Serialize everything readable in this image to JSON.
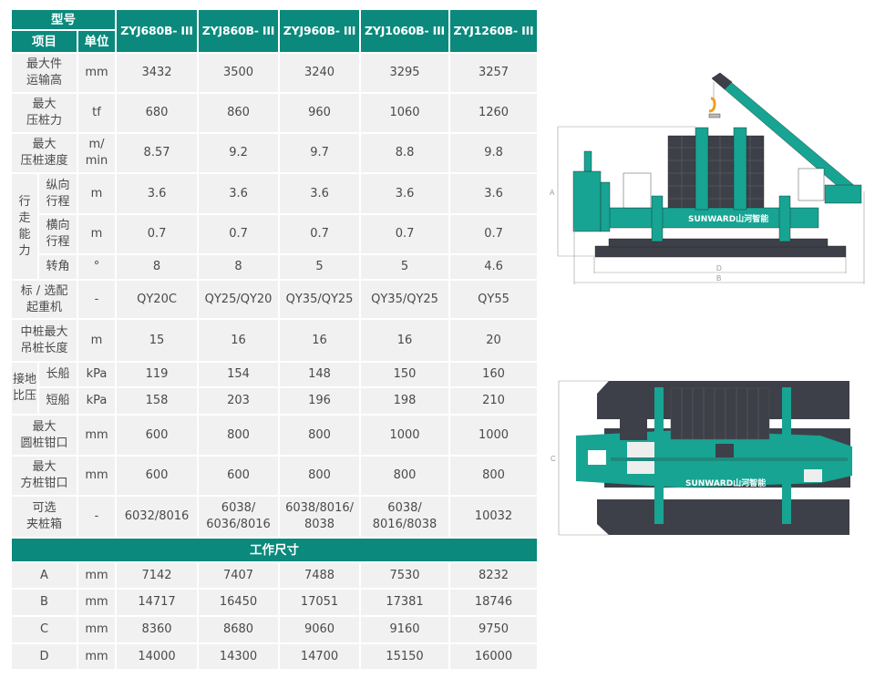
{
  "header": {
    "model_label": "型号",
    "item_label": "项目",
    "unit_label": "单位",
    "models": [
      "ZYJ680B- III",
      "ZYJ860B- III",
      "ZYJ960B- III",
      "ZYJ1060B- III",
      "ZYJ1260B- III"
    ]
  },
  "spec_rows": [
    {
      "label": "最大件\n运输高",
      "unit": "mm",
      "values": [
        "3432",
        "3500",
        "3240",
        "3295",
        "3257"
      ]
    },
    {
      "label": "最大\n压桩力",
      "unit": "tf",
      "values": [
        "680",
        "860",
        "960",
        "1060",
        "1260"
      ]
    },
    {
      "label": "最大\n压桩速度",
      "unit": "m/\nmin",
      "values": [
        "8.57",
        "9.2",
        "9.7",
        "8.8",
        "9.8"
      ]
    },
    {
      "group": "行\n走\n能\n力",
      "items": [
        {
          "label": "纵向\n行程",
          "unit": "m",
          "values": [
            "3.6",
            "3.6",
            "3.6",
            "3.6",
            "3.6"
          ]
        },
        {
          "label": "横向\n行程",
          "unit": "m",
          "values": [
            "0.7",
            "0.7",
            "0.7",
            "0.7",
            "0.7"
          ]
        },
        {
          "label": "转角",
          "unit": "°",
          "values": [
            "8",
            "8",
            "5",
            "5",
            "4.6"
          ]
        }
      ]
    },
    {
      "label": "标 / 选配\n起重机",
      "unit": "-",
      "values": [
        "QY20C",
        "QY25/QY20",
        "QY35/QY25",
        "QY35/QY25",
        "QY55"
      ]
    },
    {
      "label": "中桩最大\n吊桩长度",
      "unit": "m",
      "values": [
        "15",
        "16",
        "16",
        "16",
        "20"
      ]
    },
    {
      "group": "接地\n比压",
      "items": [
        {
          "label": "长船",
          "unit": "kPa",
          "values": [
            "119",
            "154",
            "148",
            "150",
            "160"
          ]
        },
        {
          "label": "短船",
          "unit": "kPa",
          "values": [
            "158",
            "203",
            "196",
            "198",
            "210"
          ]
        }
      ]
    },
    {
      "label": "最大\n圆桩钳口",
      "unit": "mm",
      "values": [
        "600",
        "800",
        "800",
        "1000",
        "1000"
      ]
    },
    {
      "label": "最大\n方桩钳口",
      "unit": "mm",
      "values": [
        "600",
        "600",
        "800",
        "800",
        "800"
      ]
    },
    {
      "label": "可选\n夹桩箱",
      "unit": "-",
      "values": [
        "6032/8016",
        "6038/\n6036/8016",
        "6038/8016/\n8038",
        "6038/\n8016/8038",
        "10032"
      ]
    }
  ],
  "dimensions": {
    "title": "工作尺寸",
    "rows": [
      {
        "label": "A",
        "unit": "mm",
        "values": [
          "7142",
          "7407",
          "7488",
          "7530",
          "8232"
        ]
      },
      {
        "label": "B",
        "unit": "mm",
        "values": [
          "14717",
          "16450",
          "17051",
          "17381",
          "18746"
        ]
      },
      {
        "label": "C",
        "unit": "mm",
        "values": [
          "8360",
          "8680",
          "9060",
          "9160",
          "9750"
        ]
      },
      {
        "label": "D",
        "unit": "mm",
        "values": [
          "14000",
          "14300",
          "14700",
          "15150",
          "16000"
        ]
      }
    ]
  },
  "drawings": {
    "brand": "SUNWARD山河智能",
    "side_dims": [
      "A",
      "D",
      "B"
    ],
    "top_dims": [
      "C"
    ]
  },
  "colors": {
    "header": "#0a897c",
    "cell": "#f1f1f1",
    "machine": "#17a493",
    "dark": "#3d4048",
    "hook": "#f0a020"
  }
}
